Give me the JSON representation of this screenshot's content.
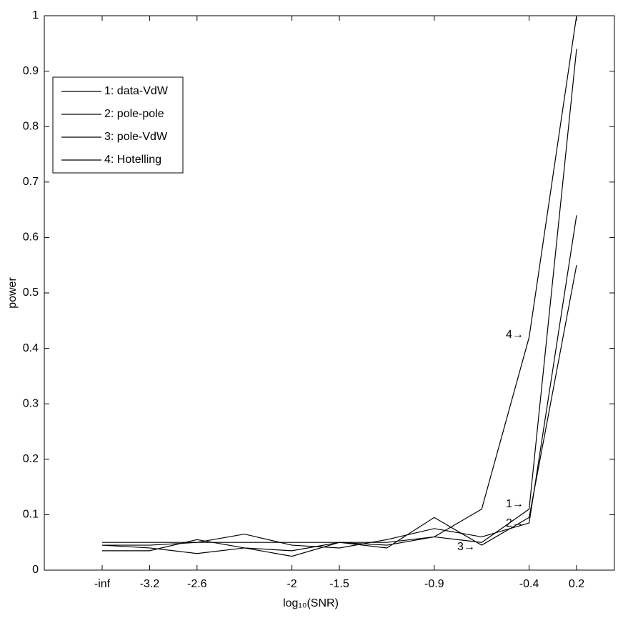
{
  "chart_data": {
    "type": "line",
    "xlabel": "log₁₀(SNR)",
    "ylabel": "power",
    "categories": [
      "-inf",
      "-3.2",
      "-2.6",
      null,
      "-2",
      "-1.5",
      null,
      "-0.9",
      null,
      "-0.4",
      "0.2"
    ],
    "series": [
      {
        "name": "1: data-VdW",
        "color": "#000000",
        "values": [
          0.035,
          0.035,
          0.055,
          0.04,
          0.035,
          0.05,
          0.045,
          0.06,
          0.05,
          0.11,
          0.94
        ]
      },
      {
        "name": "2: pole-pole",
        "color": "#000000",
        "values": [
          0.05,
          0.05,
          0.05,
          0.065,
          0.045,
          0.04,
          0.055,
          0.075,
          0.06,
          0.085,
          0.64
        ]
      },
      {
        "name": "3: pole-VdW",
        "color": "#000000",
        "values": [
          0.045,
          0.04,
          0.03,
          0.04,
          0.025,
          0.05,
          0.04,
          0.095,
          0.045,
          0.095,
          0.55
        ]
      },
      {
        "name": "4: Hotelling",
        "color": "#000000",
        "values": [
          0.045,
          0.045,
          0.05,
          0.05,
          0.05,
          0.05,
          0.05,
          0.06,
          0.11,
          0.42,
          1.0
        ]
      }
    ],
    "annotations": [
      "1→",
      "2→",
      "3→",
      "4→"
    ],
    "ylim": [
      0,
      1
    ],
    "yticks": [
      0,
      0.1,
      0.2,
      0.3,
      0.4,
      0.5,
      0.6,
      0.7,
      0.8,
      0.9,
      1
    ],
    "legend": "upper left",
    "grid": false
  }
}
